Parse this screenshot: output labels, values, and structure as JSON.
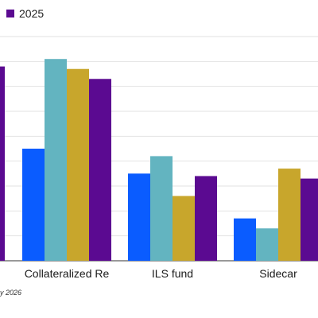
{
  "legend": {
    "visible_entries": [
      {
        "label": "2025",
        "color": "#5b0a91"
      }
    ]
  },
  "source_fragment": "y 2026",
  "colors": {
    "gridline": "#e2e2e2",
    "axis": "#333333",
    "series": [
      "#0a5cff",
      "#63b4c0",
      "#c8a62c",
      "#5b0a91"
    ]
  },
  "chart_data": {
    "type": "bar",
    "grid": true,
    "legend_position": "top-left",
    "ylim": [
      0,
      9
    ],
    "gridline_values": [
      1,
      2,
      3,
      4,
      5,
      6,
      7,
      8,
      9
    ],
    "categories": [
      "",
      "Collateralized Re",
      "ILS fund",
      "Sidecar"
    ],
    "series": [
      {
        "name": "",
        "values": [
          null,
          4.5,
          3.5,
          1.7
        ]
      },
      {
        "name": "",
        "values": [
          null,
          8.1,
          4.2,
          1.3
        ]
      },
      {
        "name": "",
        "values": [
          null,
          7.7,
          2.6,
          3.7
        ]
      },
      {
        "name": "2025",
        "values": [
          7.8,
          7.3,
          3.4,
          3.3
        ]
      }
    ]
  }
}
